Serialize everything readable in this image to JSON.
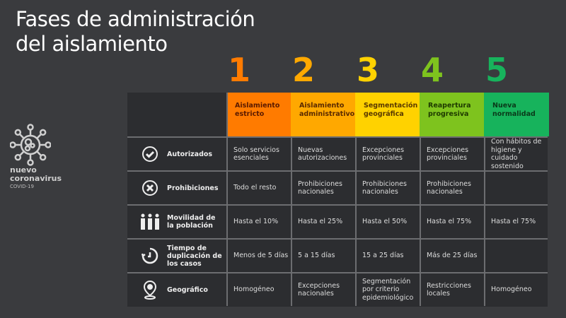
{
  "title": [
    "Fases de administración",
    "del aislamiento"
  ],
  "logo": {
    "line1": "nuevo",
    "line2": "coronavirus",
    "line3": "COVID-19",
    "icon": "virus-icon"
  },
  "phases": [
    {
      "number": "1",
      "name": "Aislamiento estricto",
      "color": "#ff7b00",
      "text_color": "#5a1a00"
    },
    {
      "number": "2",
      "name": "Aislamiento administrativo",
      "color": "#ffa800",
      "text_color": "#5a2a00"
    },
    {
      "number": "3",
      "name": "Segmentación geográfica",
      "color": "#ffd200",
      "text_color": "#5a3a00"
    },
    {
      "number": "4",
      "name": "Reapertura progresiva",
      "color": "#7ec31e",
      "text_color": "#1e3a00"
    },
    {
      "number": "5",
      "name": "Nueva normalidad",
      "color": "#17b35c",
      "text_color": "#0a3a1a"
    }
  ],
  "rows": [
    {
      "label": "Autorizados",
      "icon": "check-circle-icon",
      "values": [
        "Solo servicios esenciales",
        "Nuevas autorizaciones",
        "Excepciones provinciales",
        "Excepciones provinciales",
        "Con hábitos de higiene y cuidado sostenido"
      ]
    },
    {
      "label": "Prohibiciones",
      "icon": "x-circle-icon",
      "values": [
        "Todo el resto",
        "Prohibiciones nacionales",
        "Prohibiciones nacionales",
        "Prohibiciones nacionales",
        ""
      ]
    },
    {
      "label": "Movilidad de la población",
      "icon": "people-icon",
      "values": [
        "Hasta el 10%",
        "Hasta el 25%",
        "Hasta el 50%",
        "Hasta el 75%",
        "Hasta el 75%"
      ]
    },
    {
      "label": "Tiempo de duplicación de los casos",
      "icon": "timer-icon",
      "values": [
        "Menos de 5 días",
        "5 a 15 días",
        "15 a 25 días",
        "Más de 25 días",
        ""
      ]
    },
    {
      "label": "Geográfico",
      "icon": "location-pin-icon",
      "values": [
        "Homogéneo",
        "Excepciones nacionales",
        "Segmentación por criterio epidemiológico",
        "Restricciones locales",
        "Homogéneo"
      ]
    }
  ]
}
